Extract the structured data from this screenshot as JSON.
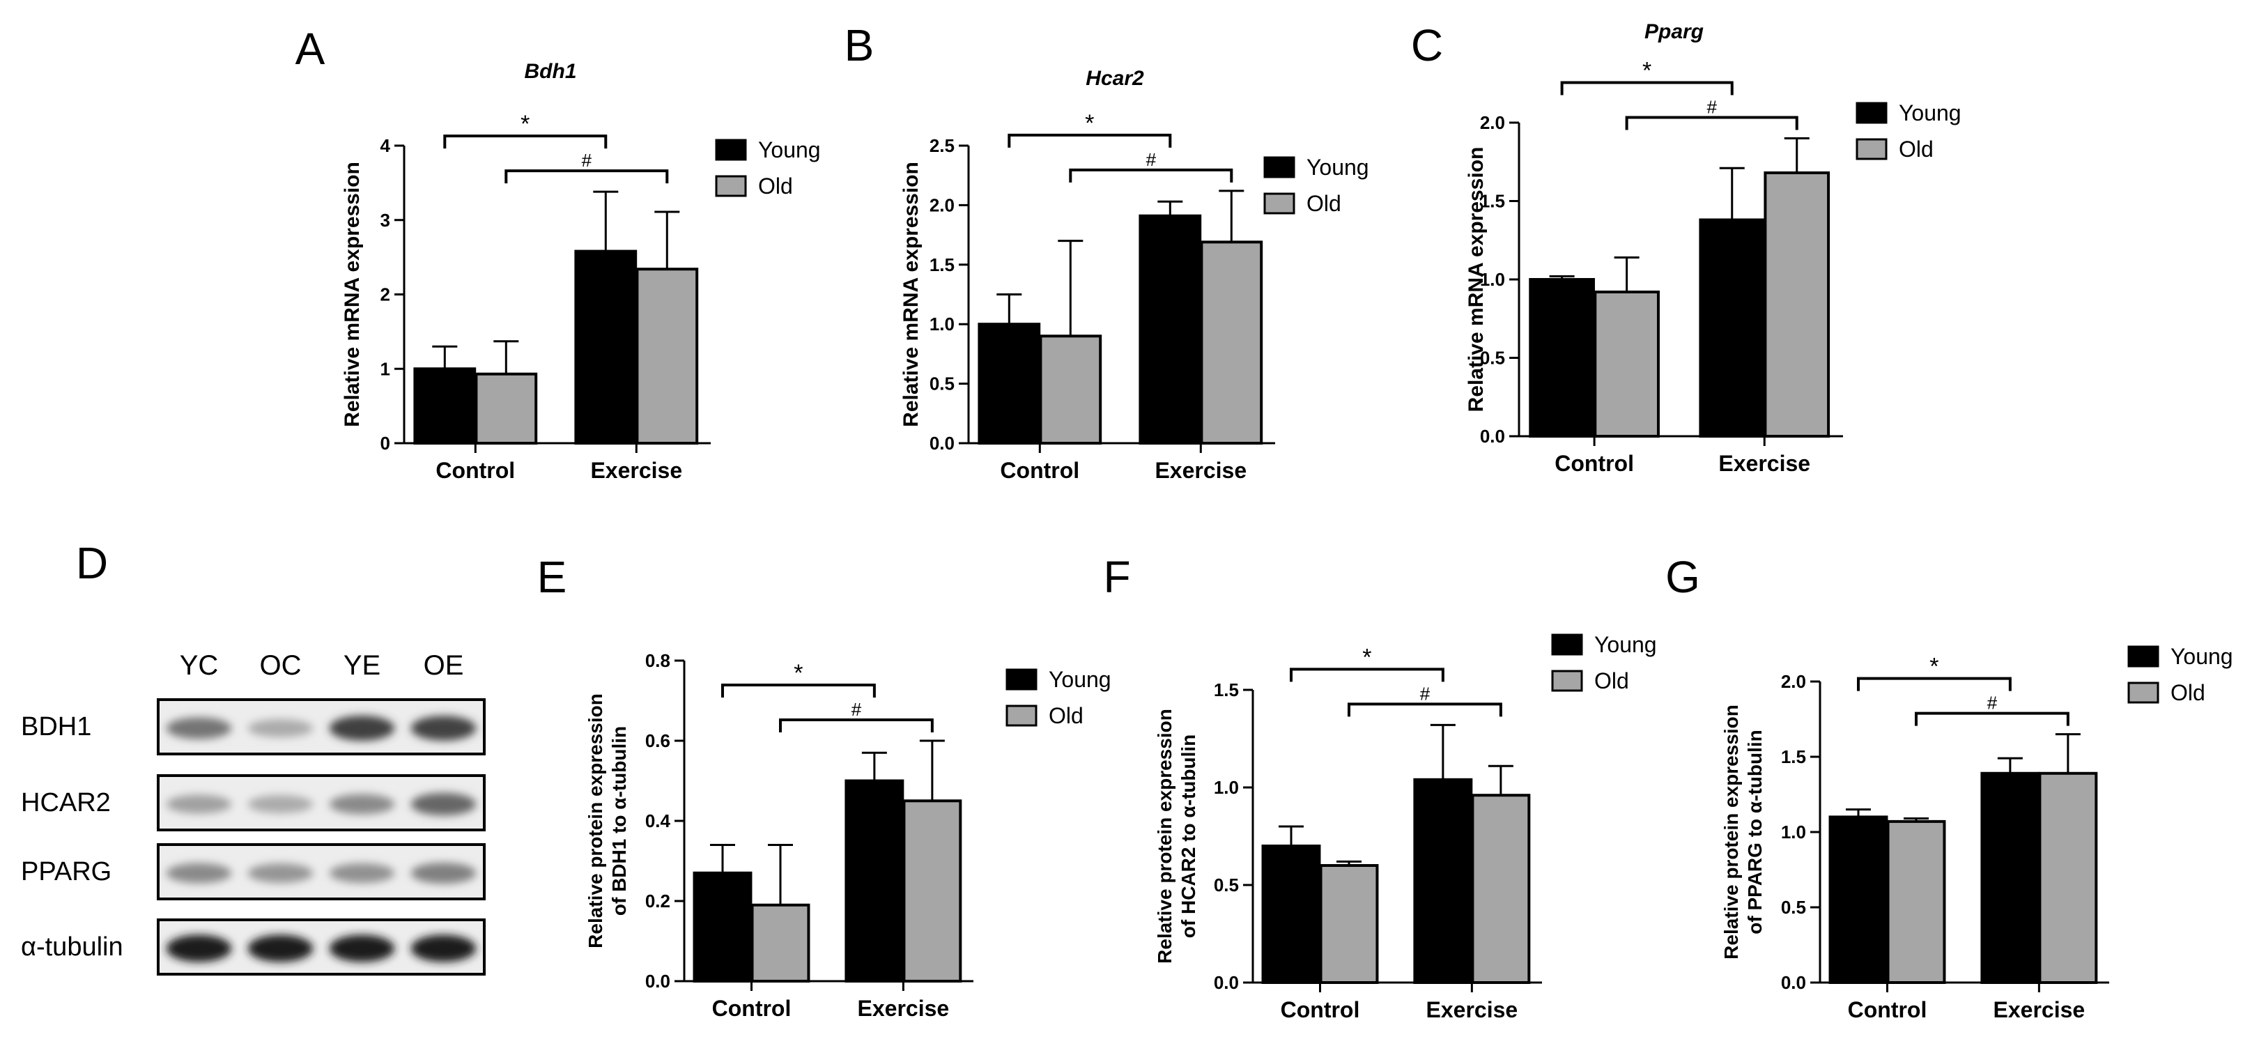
{
  "colors": {
    "young": "#000000",
    "old": "#a6a6a6",
    "axis": "#000000",
    "background": "#ffffff"
  },
  "legend": {
    "young": "Young",
    "old": "Old"
  },
  "chart_data": [
    {
      "panel": "A",
      "type": "bar",
      "title": "Bdh1",
      "title_italic": true,
      "ylabel": "Relative mRNA expression",
      "ylabel_lines": [
        "Relative mRNA expression"
      ],
      "xlabel": "",
      "categories": [
        "Control",
        "Exercise"
      ],
      "ylim": [
        0,
        4
      ],
      "yticks": [
        0,
        1,
        2,
        3,
        4
      ],
      "ytick_labels": [
        "0",
        "1",
        "2",
        "3",
        "4"
      ],
      "series": [
        {
          "name": "Young",
          "values": [
            1.0,
            2.58
          ],
          "errors": [
            0.3,
            0.8
          ]
        },
        {
          "name": "Old",
          "values": [
            0.93,
            2.34
          ],
          "errors": [
            0.44,
            0.77
          ]
        }
      ],
      "significance": [
        {
          "symbol": "*",
          "from": "Young Control",
          "to": "Young Exercise"
        },
        {
          "symbol": "#",
          "from": "Old Control",
          "to": "Old Exercise"
        }
      ],
      "legend_position": "top-right",
      "grid": false
    },
    {
      "panel": "B",
      "type": "bar",
      "title": "Hcar2",
      "title_italic": true,
      "ylabel": "Relative mRNA expression",
      "ylabel_lines": [
        "Relative mRNA expression"
      ],
      "xlabel": "",
      "categories": [
        "Control",
        "Exercise"
      ],
      "ylim": [
        0,
        2.5
      ],
      "yticks": [
        0,
        0.5,
        1.0,
        1.5,
        2.0,
        2.5
      ],
      "ytick_labels": [
        "0.0",
        "0.5",
        "1.0",
        "1.5",
        "2.0",
        "2.5"
      ],
      "series": [
        {
          "name": "Young",
          "values": [
            1.0,
            1.91
          ],
          "errors": [
            0.25,
            0.12
          ]
        },
        {
          "name": "Old",
          "values": [
            0.9,
            1.69
          ],
          "errors": [
            0.8,
            0.43
          ]
        }
      ],
      "significance": [
        {
          "symbol": "*",
          "from": "Young Control",
          "to": "Young Exercise"
        },
        {
          "symbol": "#",
          "from": "Old Control",
          "to": "Old Exercise"
        }
      ],
      "legend_position": "top-right",
      "grid": false
    },
    {
      "panel": "C",
      "type": "bar",
      "title": "Pparg",
      "title_italic": true,
      "ylabel": "Relative mRNA expression",
      "ylabel_lines": [
        "Relative mRNA expression"
      ],
      "xlabel": "",
      "categories": [
        "Control",
        "Exercise"
      ],
      "ylim": [
        0,
        2.0
      ],
      "yticks": [
        0,
        0.5,
        1.0,
        1.5,
        2.0
      ],
      "ytick_labels": [
        "0.0",
        "0.5",
        "1.0",
        "1.5",
        "2.0"
      ],
      "series": [
        {
          "name": "Young",
          "values": [
            1.0,
            1.38
          ],
          "errors": [
            0.02,
            0.33
          ]
        },
        {
          "name": "Old",
          "values": [
            0.92,
            1.68
          ],
          "errors": [
            0.22,
            0.22
          ]
        }
      ],
      "significance": [
        {
          "symbol": "*",
          "from": "Young Control",
          "to": "Young Exercise"
        },
        {
          "symbol": "#",
          "from": "Old Control",
          "to": "Old Exercise"
        }
      ],
      "legend_position": "top-right",
      "grid": false
    },
    {
      "panel": "E",
      "type": "bar",
      "title": "",
      "title_italic": false,
      "ylabel": "Relative protein expression of BDH1 to α-tubulin",
      "ylabel_lines": [
        "Relative protein expression",
        "of BDH1 to α-tubulin"
      ],
      "xlabel": "",
      "categories": [
        "Control",
        "Exercise"
      ],
      "ylim": [
        0,
        0.8
      ],
      "yticks": [
        0,
        0.2,
        0.4,
        0.6,
        0.8
      ],
      "ytick_labels": [
        "0.0",
        "0.2",
        "0.4",
        "0.6",
        "0.8"
      ],
      "series": [
        {
          "name": "Young",
          "values": [
            0.27,
            0.5
          ],
          "errors": [
            0.07,
            0.07
          ]
        },
        {
          "name": "Old",
          "values": [
            0.19,
            0.45
          ],
          "errors": [
            0.15,
            0.15
          ]
        }
      ],
      "significance": [
        {
          "symbol": "*",
          "from": "Young Control",
          "to": "Young Exercise"
        },
        {
          "symbol": "#",
          "from": "Old Control",
          "to": "Old Exercise"
        }
      ],
      "legend_position": "top-right",
      "grid": false
    },
    {
      "panel": "F",
      "type": "bar",
      "title": "",
      "title_italic": false,
      "ylabel": "Relative protein expression of HCAR2 to α-tubulin",
      "ylabel_lines": [
        "Relative protein expression",
        "of HCAR2 to α-tubulin"
      ],
      "xlabel": "",
      "categories": [
        "Control",
        "Exercise"
      ],
      "ylim": [
        0,
        1.5
      ],
      "yticks": [
        0,
        0.5,
        1.0,
        1.5
      ],
      "ytick_labels": [
        "0.0",
        "0.5",
        "1.0",
        "1.5"
      ],
      "series": [
        {
          "name": "Young",
          "values": [
            0.7,
            1.04
          ],
          "errors": [
            0.1,
            0.28
          ]
        },
        {
          "name": "Old",
          "values": [
            0.6,
            0.96
          ],
          "errors": [
            0.02,
            0.15
          ]
        }
      ],
      "significance": [
        {
          "symbol": "*",
          "from": "Young Control",
          "to": "Young Exercise"
        },
        {
          "symbol": "#",
          "from": "Old Control",
          "to": "Old Exercise"
        }
      ],
      "legend_position": "top-right",
      "grid": false
    },
    {
      "panel": "G",
      "type": "bar",
      "title": "",
      "title_italic": false,
      "ylabel": "Relative protein expression of PPARG to α-tubulin",
      "ylabel_lines": [
        "Relative protein expression",
        "of PPARG to α-tubulin"
      ],
      "xlabel": "",
      "categories": [
        "Control",
        "Exercise"
      ],
      "ylim": [
        0,
        2.0
      ],
      "yticks": [
        0,
        0.5,
        1.0,
        1.5,
        2.0
      ],
      "ytick_labels": [
        "0.0",
        "0.5",
        "1.0",
        "1.5",
        "2.0"
      ],
      "series": [
        {
          "name": "Young",
          "values": [
            1.1,
            1.39
          ],
          "errors": [
            0.05,
            0.1
          ]
        },
        {
          "name": "Old",
          "values": [
            1.07,
            1.39
          ],
          "errors": [
            0.02,
            0.26
          ]
        }
      ],
      "significance": [
        {
          "symbol": "*",
          "from": "Young Control",
          "to": "Young Exercise"
        },
        {
          "symbol": "#",
          "from": "Old Control",
          "to": "Old Exercise"
        }
      ],
      "legend_position": "top-right",
      "grid": false
    }
  ],
  "western_blot": {
    "panel": "D",
    "lane_labels": [
      "YC",
      "OC",
      "YE",
      "OE"
    ],
    "rows": [
      {
        "label": "BDH1",
        "intensities": [
          0.55,
          0.3,
          0.8,
          0.78
        ]
      },
      {
        "label": "HCAR2",
        "intensities": [
          0.35,
          0.3,
          0.45,
          0.62
        ]
      },
      {
        "label": "PPARG",
        "intensities": [
          0.45,
          0.4,
          0.42,
          0.5
        ]
      },
      {
        "label": "α-tubulin",
        "intensities": [
          0.95,
          0.95,
          0.95,
          0.95
        ]
      }
    ]
  }
}
